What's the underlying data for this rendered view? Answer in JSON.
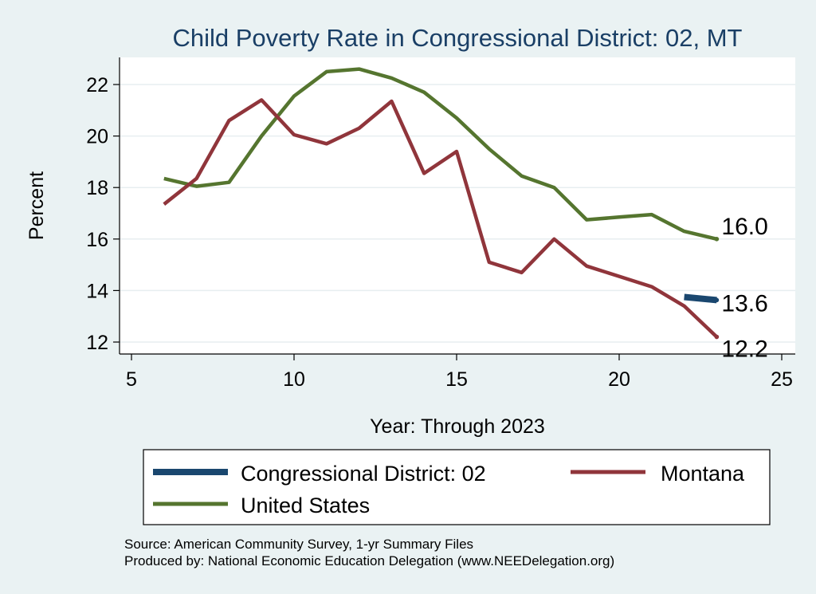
{
  "chart_data": {
    "type": "line",
    "title": "Child Poverty Rate in Congressional District:  02, MT",
    "xlabel": "Year: Through 2023",
    "ylabel": "Percent",
    "xlim": [
      5,
      25
    ],
    "ylim": [
      11.7,
      23.2
    ],
    "xticks": [
      5,
      10,
      15,
      20,
      25
    ],
    "yticks": [
      12,
      14,
      16,
      18,
      20,
      22
    ],
    "grid": "horizontal",
    "legend": "bottom",
    "series": [
      {
        "name": "Congressional District:  02",
        "color": "#1a476f",
        "points": [
          [
            22,
            13.75
          ],
          [
            23,
            13.63
          ]
        ],
        "end_label": "13.6"
      },
      {
        "name": "Montana",
        "color": "#90353b",
        "points": [
          [
            6,
            17.35
          ],
          [
            7,
            18.35
          ],
          [
            8,
            20.6
          ],
          [
            9,
            21.4
          ],
          [
            10,
            20.05
          ],
          [
            11,
            19.7
          ],
          [
            12,
            20.3
          ],
          [
            13,
            21.35
          ],
          [
            14,
            18.55
          ],
          [
            15,
            19.4
          ],
          [
            16,
            15.1
          ],
          [
            17,
            14.7
          ],
          [
            18,
            16.0
          ],
          [
            19,
            14.95
          ],
          [
            20,
            14.55
          ],
          [
            21,
            14.15
          ],
          [
            22,
            13.4
          ],
          [
            23,
            12.2
          ]
        ],
        "end_label": "12.2"
      },
      {
        "name": "United States",
        "color": "#55752f",
        "points": [
          [
            6,
            18.35
          ],
          [
            7,
            18.05
          ],
          [
            8,
            18.2
          ],
          [
            9,
            20.0
          ],
          [
            10,
            21.55
          ],
          [
            11,
            22.5
          ],
          [
            12,
            22.6
          ],
          [
            13,
            22.25
          ],
          [
            14,
            21.7
          ],
          [
            15,
            20.7
          ],
          [
            16,
            19.5
          ],
          [
            17,
            18.45
          ],
          [
            18,
            18.0
          ],
          [
            19,
            16.75
          ],
          [
            20,
            16.85
          ],
          [
            21,
            16.95
          ],
          [
            22,
            16.3
          ],
          [
            23,
            16.0
          ]
        ],
        "end_label": "16.0"
      }
    ],
    "source": "Source: American Community Survey, 1-yr Summary Files",
    "produced_by": "Produced by: National Economic Education Delegation (www.NEEDelegation.org)"
  }
}
